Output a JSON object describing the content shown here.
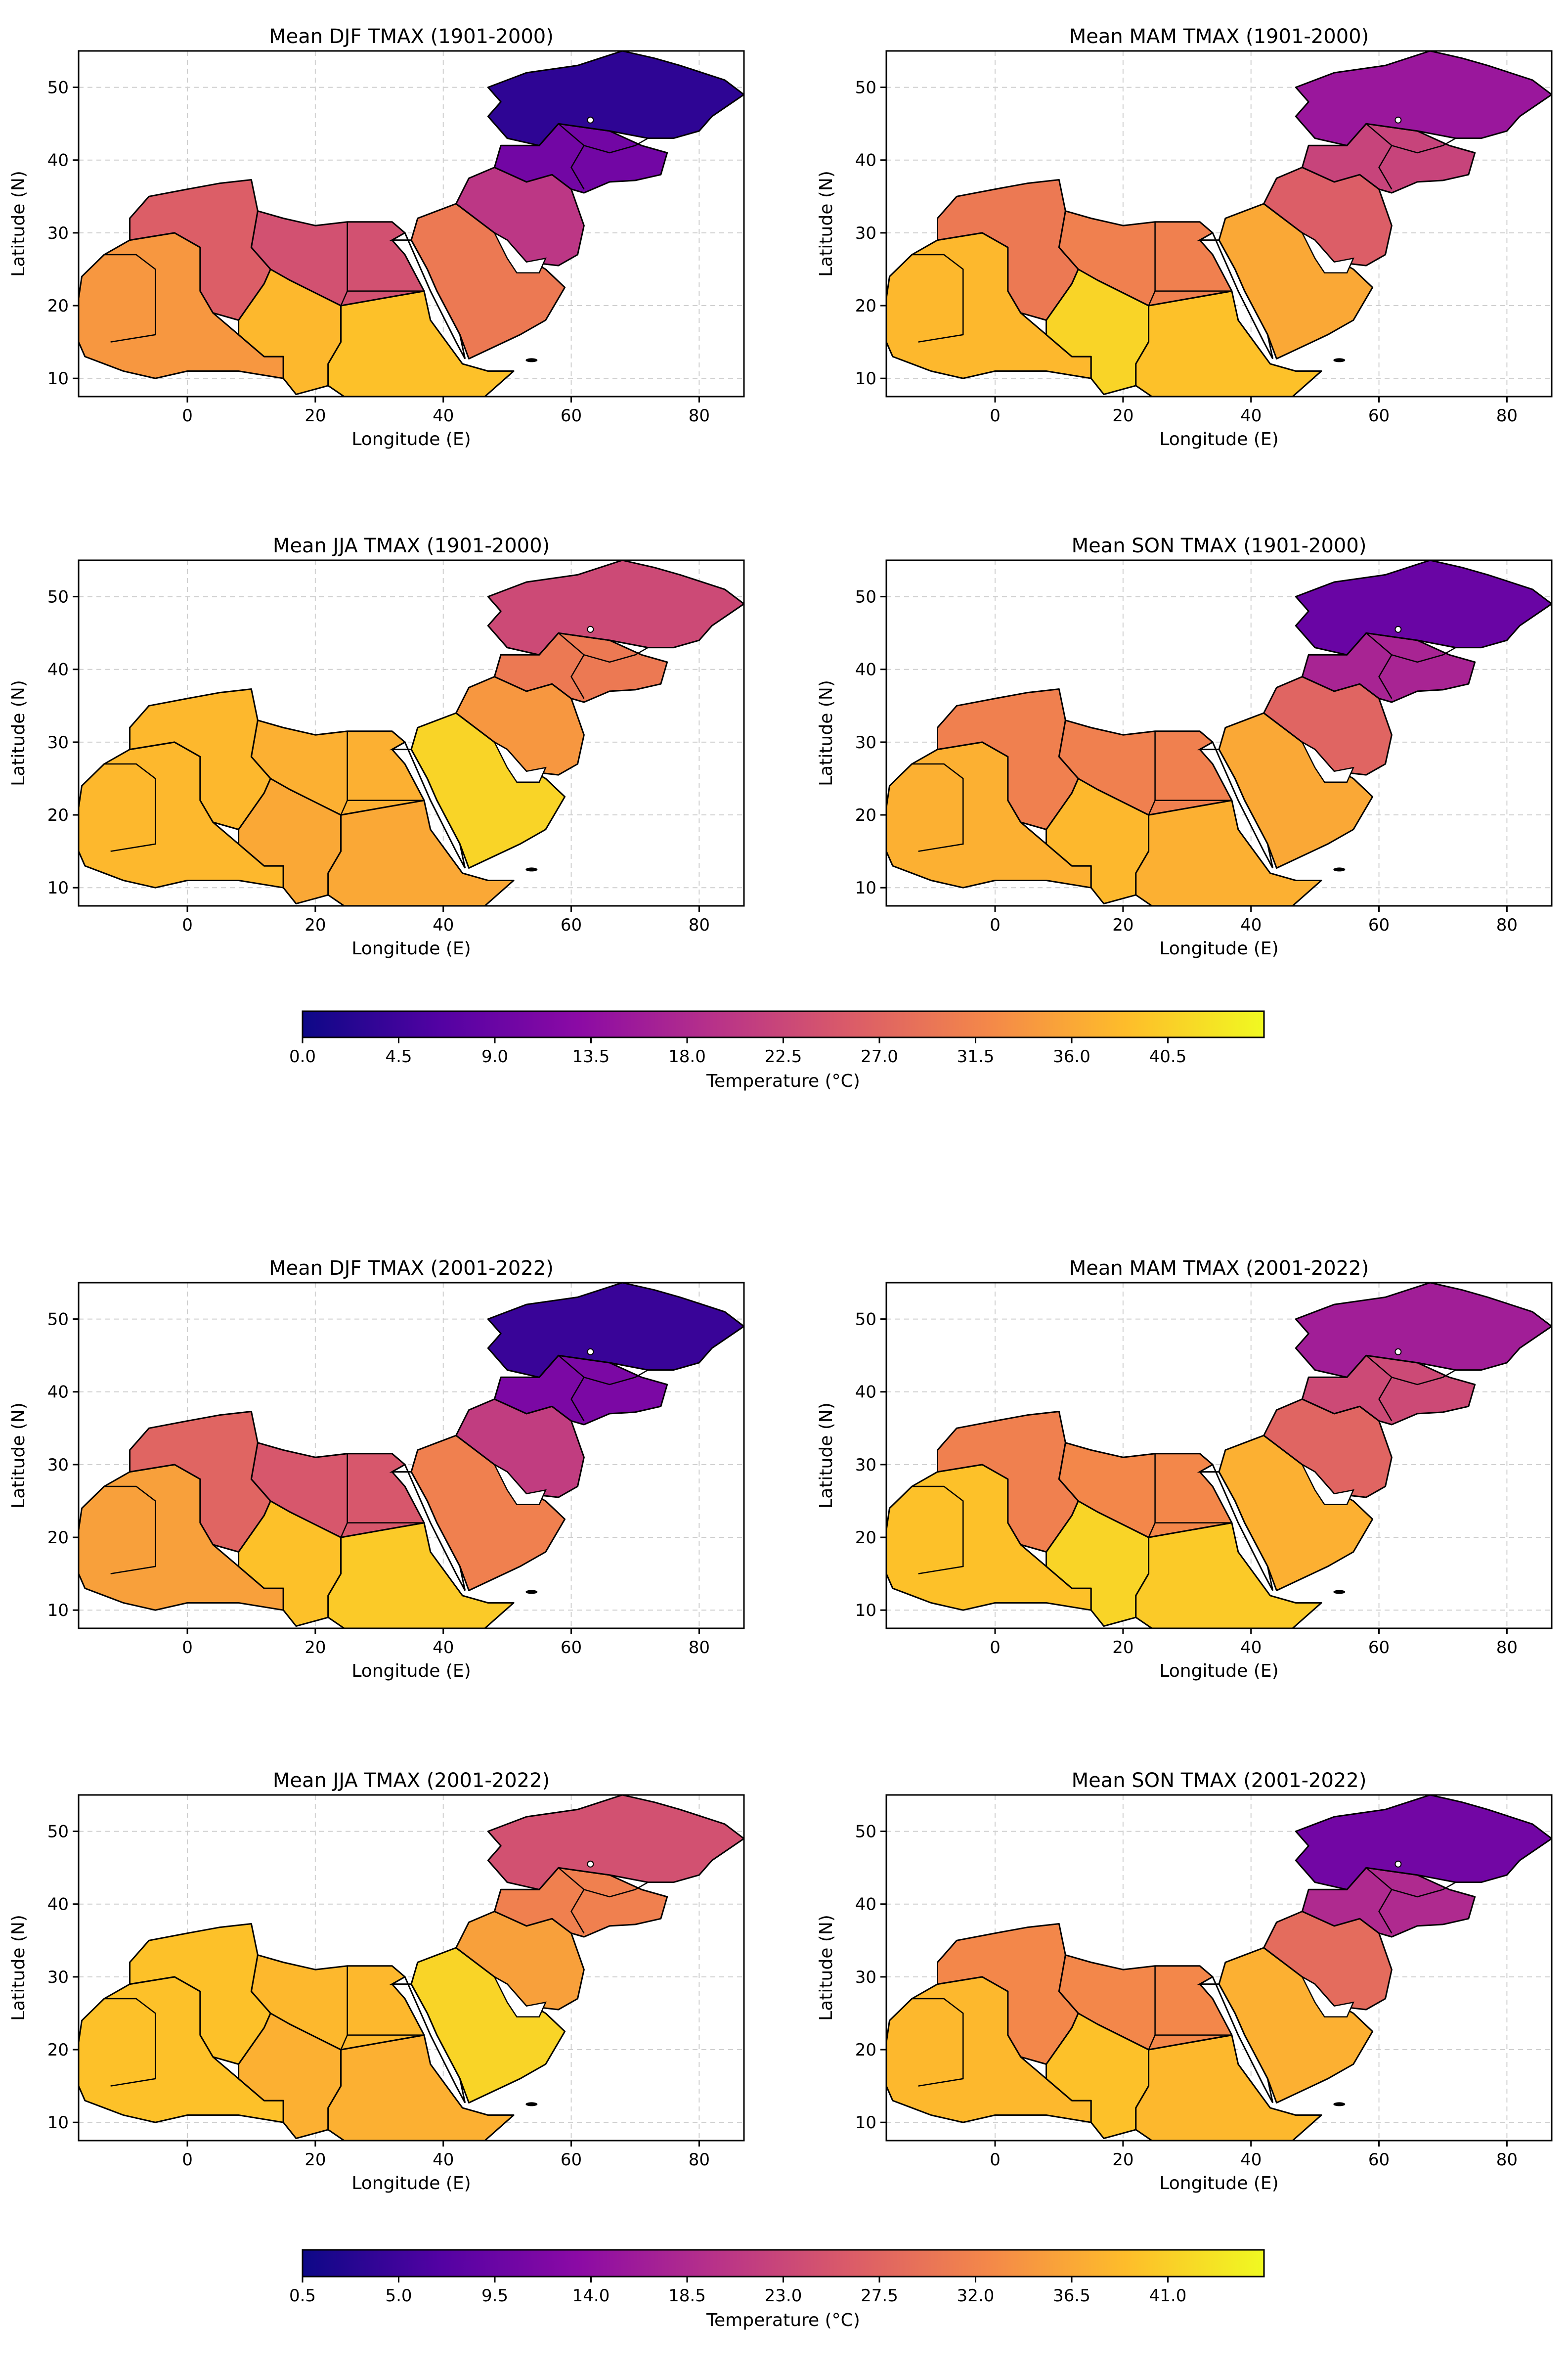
{
  "colormap": [
    "#0d0887",
    "#5302a3",
    "#8b0aa5",
    "#b83289",
    "#db5c68",
    "#f48849",
    "#febd2a",
    "#f0f921"
  ],
  "axis_style": {
    "grid": true,
    "grid_style": "dashed light gray",
    "xlabel": "Longitude (E)",
    "ylabel": "Latitude (N)",
    "xlim": [
      -17,
      87
    ],
    "ylim": [
      7.5,
      55
    ],
    "xticks": [
      "0",
      "20",
      "40",
      "60",
      "80"
    ],
    "yticks": [
      "10",
      "20",
      "30",
      "40",
      "50"
    ]
  },
  "chart_data": [
    {
      "type": "heatmap",
      "title": "Mean DJF TMAX (1901-2000)",
      "xlabel": "Longitude (E)",
      "ylabel": "Latitude (N)",
      "xlim": [
        -17,
        87
      ],
      "ylim": [
        7.5,
        55
      ],
      "grid": true,
      "temps": {
        "west": 34,
        "maghreb": 26,
        "sahel": 38,
        "sudan": 39,
        "egypt": 24,
        "arabia": 30,
        "iran": 20,
        "central_asia": 3,
        "stans": 10
      }
    },
    {
      "type": "heatmap",
      "title": "Mean MAM TMAX (1901-2000)",
      "xlabel": "Longitude (E)",
      "ylabel": "Latitude (N)",
      "xlim": [
        -17,
        87
      ],
      "ylim": [
        7.5,
        55
      ],
      "grid": true,
      "temps": {
        "west": 38,
        "maghreb": 30,
        "sahel": 41,
        "sudan": 39,
        "egypt": 31,
        "arabia": 36,
        "iran": 26,
        "central_asia": 15,
        "stans": 22
      }
    },
    {
      "type": "heatmap",
      "title": "Mean JJA TMAX (1901-2000)",
      "xlabel": "Longitude (E)",
      "ylabel": "Latitude (N)",
      "xlim": [
        -17,
        87
      ],
      "ylim": [
        7.5,
        55
      ],
      "grid": true,
      "temps": {
        "west": 38,
        "maghreb": 38,
        "sahel": 36,
        "sudan": 36,
        "egypt": 37,
        "arabia": 41,
        "iran": 34,
        "central_asia": 23,
        "stans": 30
      }
    },
    {
      "type": "heatmap",
      "title": "Mean SON TMAX (1901-2000)",
      "xlabel": "Longitude (E)",
      "ylabel": "Latitude (N)",
      "xlim": [
        -17,
        87
      ],
      "ylim": [
        7.5,
        55
      ],
      "grid": true,
      "temps": {
        "west": 37,
        "maghreb": 31,
        "sahel": 38,
        "sudan": 37,
        "egypt": 31,
        "arabia": 36,
        "iran": 27,
        "central_asia": 9,
        "stans": 17
      }
    },
    {
      "type": "heatmap",
      "title": "Mean DJF TMAX (2001-2022)",
      "xlabel": "Longitude (E)",
      "ylabel": "Latitude (N)",
      "xlim": [
        -17,
        87
      ],
      "ylim": [
        7.5,
        55
      ],
      "grid": true,
      "temps": {
        "west": 35,
        "maghreb": 27,
        "sahel": 39,
        "sudan": 40,
        "egypt": 25,
        "arabia": 31,
        "iran": 21,
        "central_asia": 4,
        "stans": 11
      }
    },
    {
      "type": "heatmap",
      "title": "Mean MAM TMAX (2001-2022)",
      "xlabel": "Longitude (E)",
      "ylabel": "Latitude (N)",
      "xlim": [
        -17,
        87
      ],
      "ylim": [
        7.5,
        55
      ],
      "grid": true,
      "temps": {
        "west": 39,
        "maghreb": 31,
        "sahel": 41,
        "sudan": 40,
        "egypt": 32,
        "arabia": 37,
        "iran": 27,
        "central_asia": 16,
        "stans": 23
      }
    },
    {
      "type": "heatmap",
      "title": "Mean JJA TMAX (2001-2022)",
      "xlabel": "Longitude (E)",
      "ylabel": "Latitude (N)",
      "xlim": [
        -17,
        87
      ],
      "ylim": [
        7.5,
        55
      ],
      "grid": true,
      "temps": {
        "west": 39,
        "maghreb": 39,
        "sahel": 37,
        "sudan": 37,
        "egypt": 38,
        "arabia": 41,
        "iran": 35,
        "central_asia": 24,
        "stans": 31
      }
    },
    {
      "type": "heatmap",
      "title": "Mean SON TMAX (2001-2022)",
      "xlabel": "Longitude (E)",
      "ylabel": "Latitude (N)",
      "xlim": [
        -17,
        87
      ],
      "ylim": [
        7.5,
        55
      ],
      "grid": true,
      "temps": {
        "west": 38,
        "maghreb": 32,
        "sahel": 39,
        "sudan": 38,
        "egypt": 32,
        "arabia": 37,
        "iran": 28,
        "central_asia": 10,
        "stans": 18
      }
    }
  ],
  "colorbars": [
    {
      "label": "Temperature (°C)",
      "min": 0,
      "max": 45,
      "ticks": [
        "0.0",
        "4.5",
        "9.0",
        "13.5",
        "18.0",
        "22.5",
        "27.0",
        "31.5",
        "36.0",
        "40.5"
      ],
      "tick_values": [
        0,
        4.5,
        9,
        13.5,
        18,
        22.5,
        27,
        31.5,
        36,
        40.5
      ]
    },
    {
      "label": "Temperature (°C)",
      "min": 0.5,
      "max": 45.5,
      "ticks": [
        "0.5",
        "5.0",
        "9.5",
        "14.0",
        "18.5",
        "23.0",
        "27.5",
        "32.0",
        "36.5",
        "41.0"
      ],
      "tick_values": [
        0.5,
        5,
        9.5,
        14,
        18.5,
        23,
        27.5,
        32,
        36.5,
        41
      ]
    }
  ]
}
